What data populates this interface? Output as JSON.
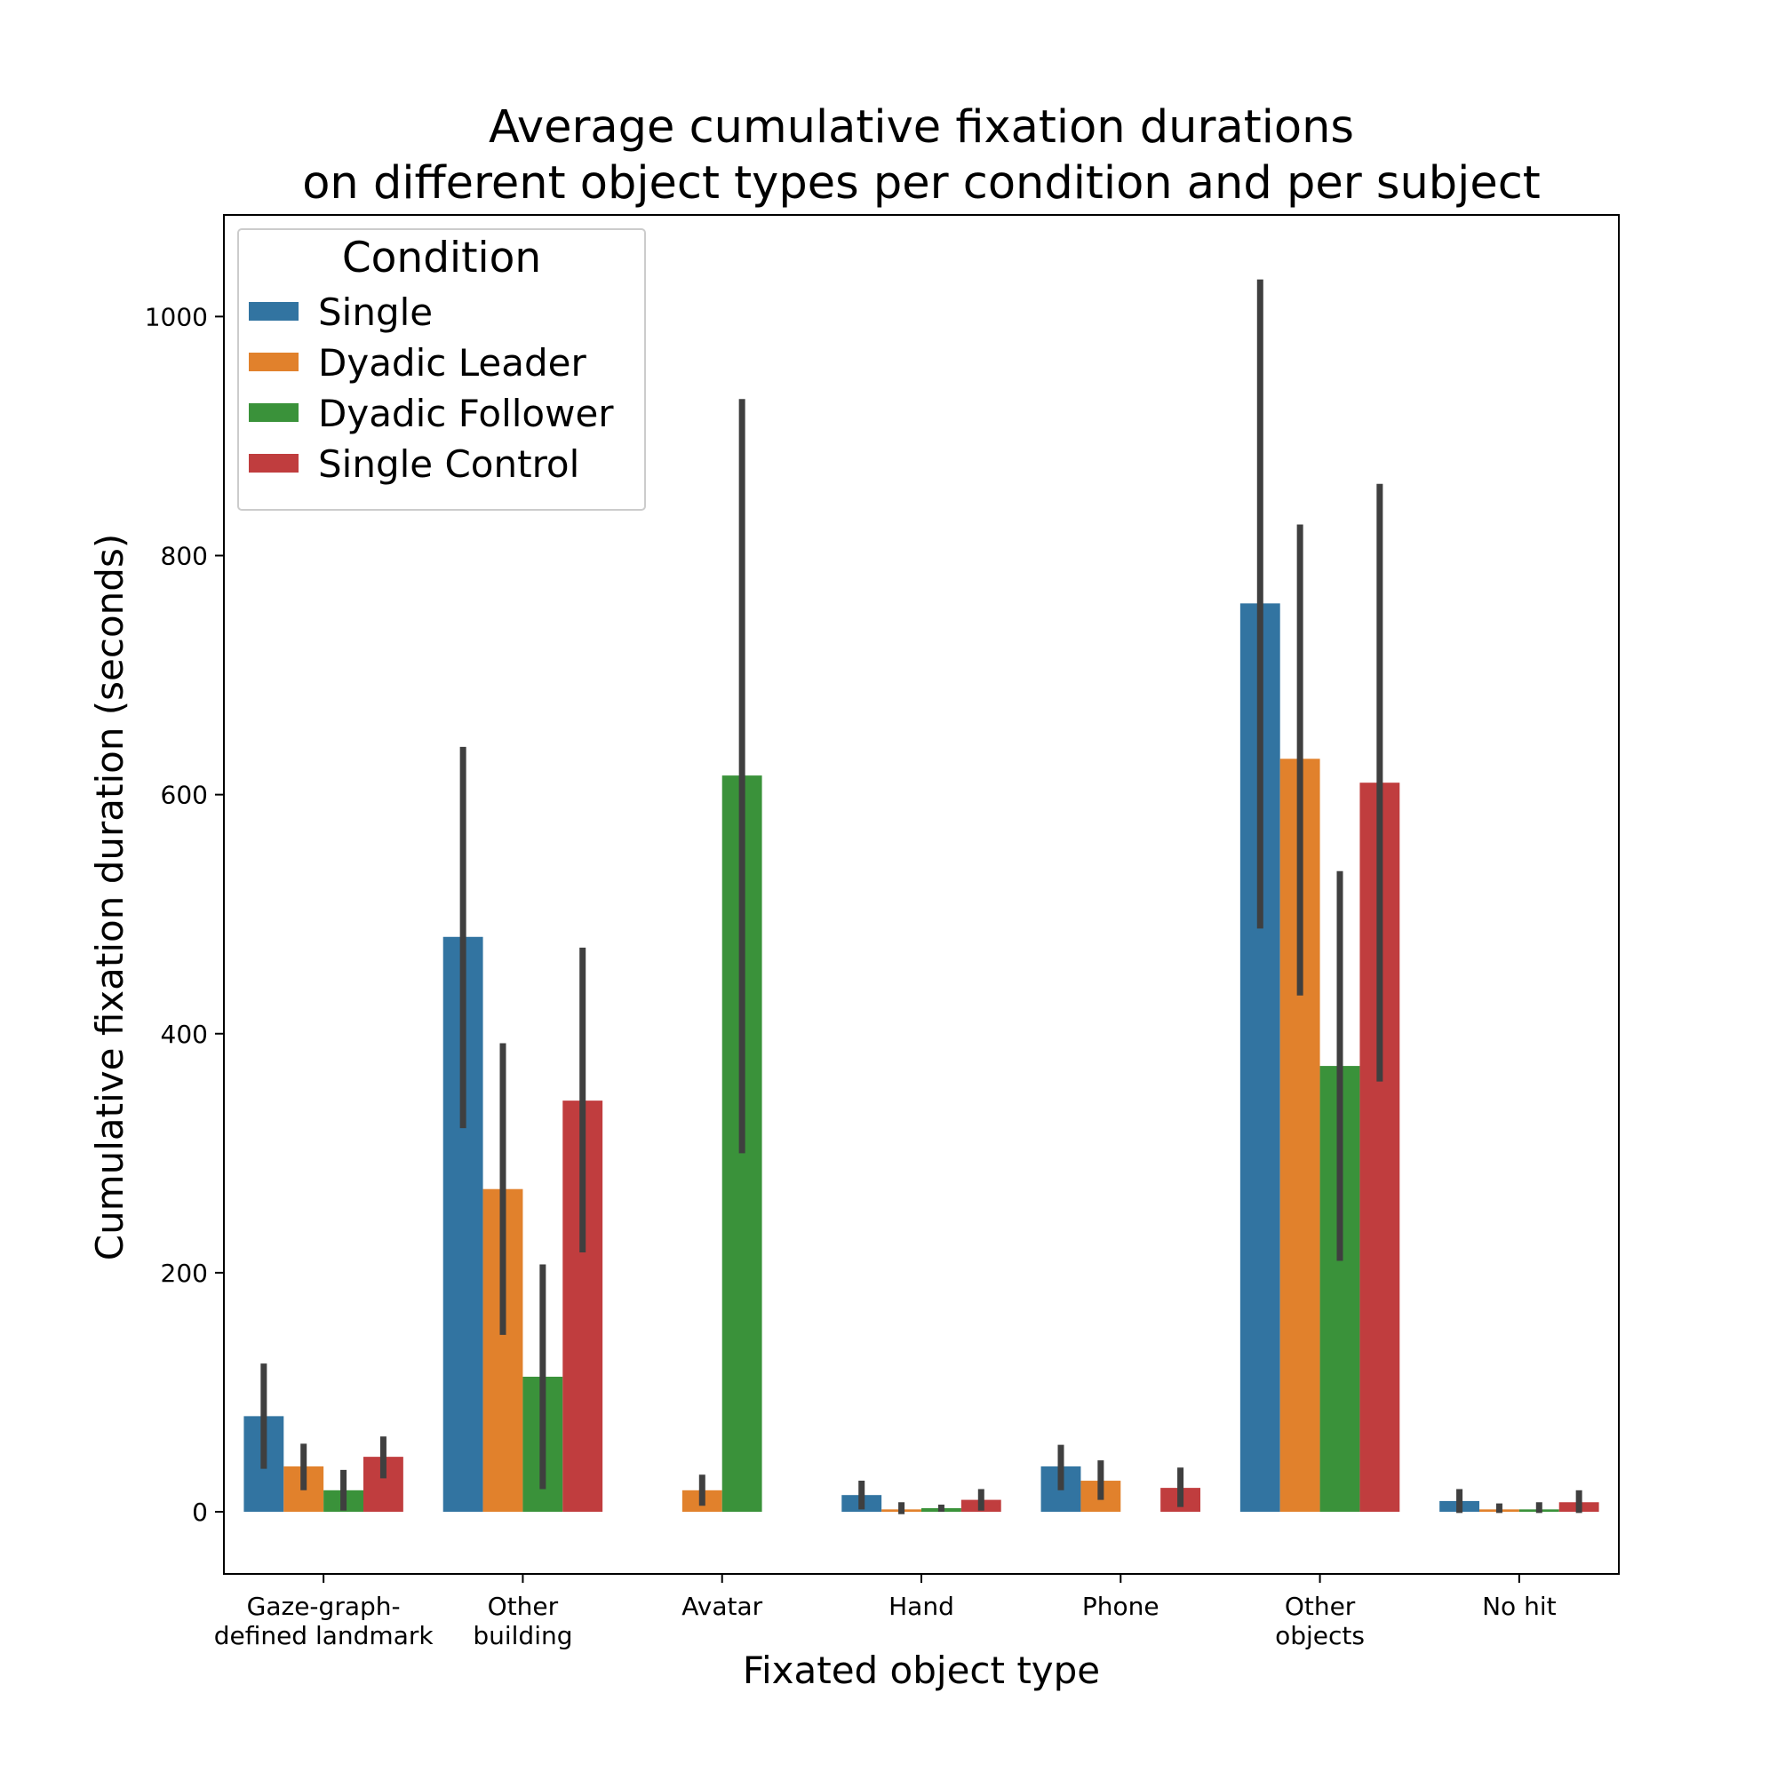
{
  "chart_data": {
    "type": "bar",
    "title_lines": [
      "Average cumulative fixation durations",
      "on different object types per condition and per subject"
    ],
    "xlabel": "Fixated object type",
    "ylabel": "Cumulative fixation duration (seconds)",
    "categories": [
      [
        "Gaze-graph-",
        "defined landmark"
      ],
      [
        "Other",
        "building"
      ],
      [
        "Avatar"
      ],
      [
        "Hand"
      ],
      [
        "Phone"
      ],
      [
        "Other",
        "objects"
      ],
      [
        "No hit"
      ]
    ],
    "ylim": [
      -52,
      1085
    ],
    "yticks": [
      0,
      200,
      400,
      600,
      800,
      1000
    ],
    "legend": {
      "title": "Condition",
      "placement": "top-left"
    },
    "series": [
      {
        "name": "Single",
        "color": "#3274a1",
        "values": [
          80,
          481,
          null,
          14,
          38,
          760,
          9
        ],
        "ci": [
          [
            36,
            124
          ],
          [
            321,
            640
          ],
          null,
          [
            2,
            26
          ],
          [
            18,
            56
          ],
          [
            488,
            1031
          ],
          [
            -1,
            19
          ]
        ]
      },
      {
        "name": "Dyadic Leader",
        "color": "#e1812c",
        "values": [
          38,
          270,
          18,
          2,
          26,
          630,
          2
        ],
        "ci": [
          [
            18,
            57
          ],
          [
            148,
            392
          ],
          [
            5,
            31
          ],
          [
            -2,
            8
          ],
          [
            10,
            43
          ],
          [
            432,
            826
          ],
          [
            -1,
            7
          ]
        ]
      },
      {
        "name": "Dyadic Follower",
        "color": "#3a923a",
        "values": [
          18,
          113,
          616,
          3,
          null,
          373,
          2
        ],
        "ci": [
          [
            1,
            35
          ],
          [
            19,
            207
          ],
          [
            300,
            931
          ],
          [
            0,
            6
          ],
          null,
          [
            210,
            536
          ],
          [
            -1,
            8
          ]
        ]
      },
      {
        "name": "Single Control",
        "color": "#c03d3e",
        "values": [
          46,
          344,
          null,
          10,
          20,
          610,
          8
        ],
        "ci": [
          [
            28,
            63
          ],
          [
            217,
            472
          ],
          null,
          [
            1,
            19
          ],
          [
            4,
            37
          ],
          [
            360,
            860
          ],
          [
            -1,
            18
          ]
        ]
      }
    ]
  }
}
